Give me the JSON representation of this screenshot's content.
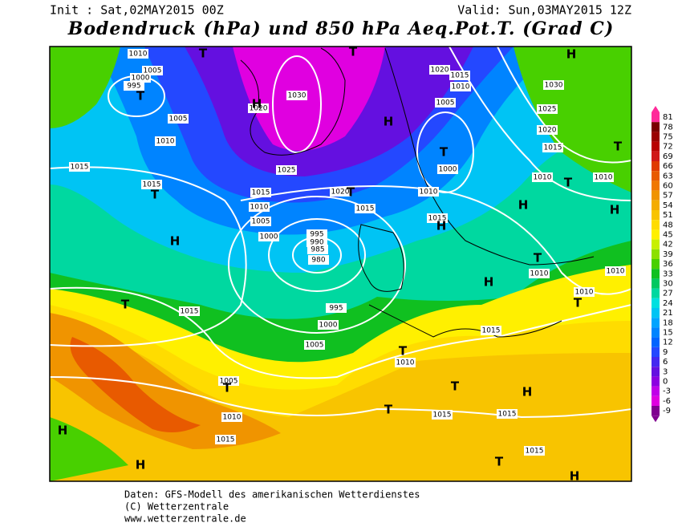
{
  "header": {
    "init": "Init : Sat,02MAY2015 00Z",
    "valid": "Valid: Sun,03MAY2015 12Z",
    "title": "Bodendruck (hPa) und 850 hPa Aeq.Pot.T. (Grad C)"
  },
  "colorbar": {
    "labels": [
      81,
      78,
      75,
      72,
      69,
      66,
      63,
      60,
      57,
      54,
      51,
      48,
      45,
      42,
      39,
      36,
      33,
      30,
      27,
      24,
      21,
      18,
      15,
      12,
      9,
      6,
      3,
      0,
      -3,
      -6,
      -9
    ],
    "colors": [
      "#ff2a9a",
      "#7a0000",
      "#9a0000",
      "#b80000",
      "#d01818",
      "#e03a00",
      "#e85a00",
      "#f07800",
      "#f09400",
      "#f4ac00",
      "#f8c400",
      "#ffdc00",
      "#fff000",
      "#c8f000",
      "#8ce000",
      "#48d000",
      "#10c020",
      "#00c860",
      "#00d8a0",
      "#00e0e0",
      "#00c4f4",
      "#00a4ff",
      "#0084ff",
      "#0064ff",
      "#2448ff",
      "#4428f0",
      "#6410e0",
      "#8c00e0",
      "#c000e8",
      "#e000e0",
      "#800090"
    ]
  },
  "map": {
    "centers": [
      "T",
      "T",
      "H",
      "T",
      "H",
      "H",
      "T",
      "T",
      "T",
      "T",
      "T",
      "H",
      "H",
      "H",
      "H",
      "T",
      "T",
      "H",
      "T",
      "T",
      "T",
      "T",
      "H",
      "H",
      "T",
      "H",
      "T",
      "H"
    ],
    "isobars": [
      1010,
      1005,
      1000,
      995,
      1005,
      1010,
      1015,
      1015,
      1020,
      1030,
      1025,
      1015,
      1010,
      1005,
      1000,
      995,
      990,
      985,
      980,
      995,
      1000,
      1005,
      1015,
      1020,
      1015,
      1010,
      1005,
      1000,
      1010,
      1015,
      1020,
      1015,
      1030,
      1025,
      1020,
      1015,
      1010,
      1010,
      1010,
      1010,
      1010,
      1015,
      1010,
      1005,
      1010,
      1015,
      1015,
      1015,
      1015
    ]
  },
  "footer": {
    "lines": [
      "Daten: GFS-Modell des amerikanischen Wetterdienstes",
      "(C) Wetterzentrale",
      "www.wetterzentrale.de"
    ]
  }
}
